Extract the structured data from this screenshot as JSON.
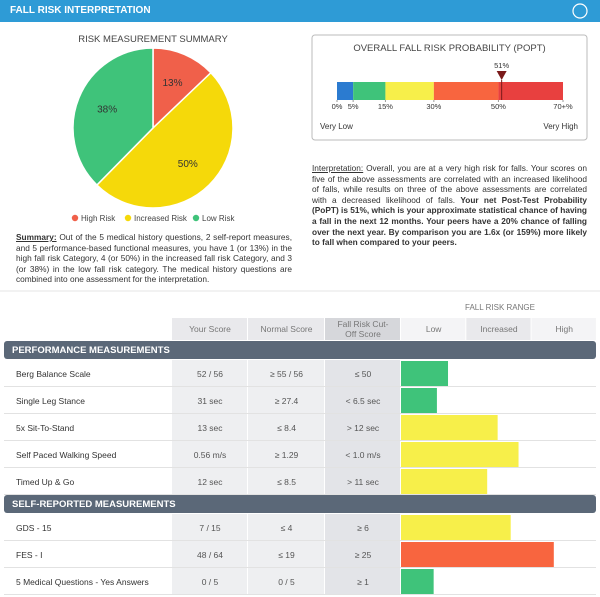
{
  "header": {
    "title": "FALL RISK INTERPRETATION"
  },
  "risk_summary": {
    "type": "pie",
    "title": "RISK MEASUREMENT SUMMARY",
    "categories": [
      "High Risk",
      "Increased Risk",
      "Low Risk"
    ],
    "values": [
      13,
      50,
      38
    ],
    "value_labels": [
      "13%",
      "50%",
      "38%"
    ],
    "colors": [
      "#f0604a",
      "#f5d90a",
      "#3fc37a"
    ],
    "summary_label": "Summary:",
    "summary_text": "Out of the 5 medical history questions, 2 self-report measures, and 5 performance-based functional measures, you have 1 (or 13%) in the high fall risk Category, 4 (or 50%) in the increased fall risk Category, and 3 (or 38%) in the low fall risk category. The medical history questions are combined into one assessment for the interpretation."
  },
  "probability": {
    "type": "range-bar",
    "title": "OVERALL FALL RISK PROBABILITY (POPT)",
    "xlim": [
      0,
      70
    ],
    "xticks": [
      {
        "value": 0,
        "label": "0%"
      },
      {
        "value": 5,
        "label": "5%"
      },
      {
        "value": 15,
        "label": "15%"
      },
      {
        "value": 30,
        "label": "30%"
      },
      {
        "value": 50,
        "label": "50%"
      },
      {
        "value": 70,
        "label": "70+%"
      }
    ],
    "band_colors": [
      "#2b7bd0",
      "#3fc37a",
      "#f7ef4a",
      "#f8653f",
      "#e8403f"
    ],
    "marker": {
      "value": 51,
      "label": "51%",
      "color": "#7a1a1a"
    },
    "low_label": "Very Low",
    "high_label": "Very High"
  },
  "interpretation": {
    "label": "Interpretation:",
    "text": "Overall, you are at a very high risk for falls. Your scores on five of the above assessments are correlated with an increased likelihood of falls, while results on three of the above assessments are correlated with a decreased likelihood of falls.",
    "bold_text": "Your net Post-Test Probability (PoPT) is 51%, which is your approximate statistical chance of having a fall in the next 12 months. Your peers have a 20% chance of falling over the next year. By comparison you are 1.6x (or 159%) more likely to fall when compared to your peers."
  },
  "fall_risk_range": {
    "title": "FALL RISK RANGE",
    "columns": [
      "Low",
      "Increased",
      "High"
    ],
    "xlim": [
      0,
      3
    ]
  },
  "table": {
    "columns": [
      "Your Score",
      "Normal Score",
      "Fall Risk Cut-Off Score"
    ],
    "sections": [
      {
        "title": "PERFORMANCE MEASUREMENTS",
        "rows": [
          {
            "name": "Berg Balance Scale",
            "your_score": "52 / 56",
            "normal_score": "≥ 55 / 56",
            "cutoff": "≤ 50",
            "risk": 0.72,
            "color": "#3fc37a"
          },
          {
            "name": "Single Leg Stance",
            "your_score": "31 sec",
            "normal_score": "≥ 27.4",
            "cutoff": "< 6.5 sec",
            "risk": 0.55,
            "color": "#3fc37a"
          },
          {
            "name": "5x Sit-To-Stand",
            "your_score": "13 sec",
            "normal_score": "≤ 8.4",
            "cutoff": "> 12 sec",
            "risk": 1.48,
            "color": "#f7ef4a"
          },
          {
            "name": "Self Paced Walking Speed",
            "your_score": "0.56 m/s",
            "normal_score": "≥ 1.29",
            "cutoff": "< 1.0 m/s",
            "risk": 1.8,
            "color": "#f7ef4a"
          },
          {
            "name": "Timed Up & Go",
            "your_score": "12 sec",
            "normal_score": "≤ 8.5",
            "cutoff": "> 11 sec",
            "risk": 1.32,
            "color": "#f7ef4a"
          }
        ]
      },
      {
        "title": "SELF-REPORTED MEASUREMENTS",
        "rows": [
          {
            "name": "GDS - 15",
            "your_score": "7 / 15",
            "normal_score": "≤ 4",
            "cutoff": "≥ 6",
            "risk": 1.68,
            "color": "#f7ef4a"
          },
          {
            "name": "FES - I",
            "your_score": "48 / 64",
            "normal_score": "≤ 19",
            "cutoff": "≥ 25",
            "risk": 2.34,
            "color": "#f8653f"
          },
          {
            "name": "5 Medical Questions - Yes Answers",
            "your_score": "0 / 5",
            "normal_score": "0 / 5",
            "cutoff": "≥ 1",
            "risk": 0.5,
            "color": "#3fc37a"
          }
        ]
      }
    ]
  }
}
